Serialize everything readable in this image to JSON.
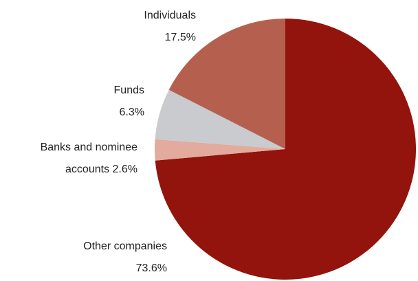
{
  "chart_data": {
    "type": "pie",
    "categories": [
      "Other companies",
      "Banks and nominee accounts",
      "Funds",
      "Individuals"
    ],
    "values": [
      73.6,
      2.6,
      6.3,
      17.5
    ],
    "value_labels": [
      "73.6%",
      "2.6%",
      "6.3%",
      "17.5%"
    ],
    "colors": [
      "#93130d",
      "#e2ab9d",
      "#c9cbce",
      "#b5604f"
    ]
  }
}
